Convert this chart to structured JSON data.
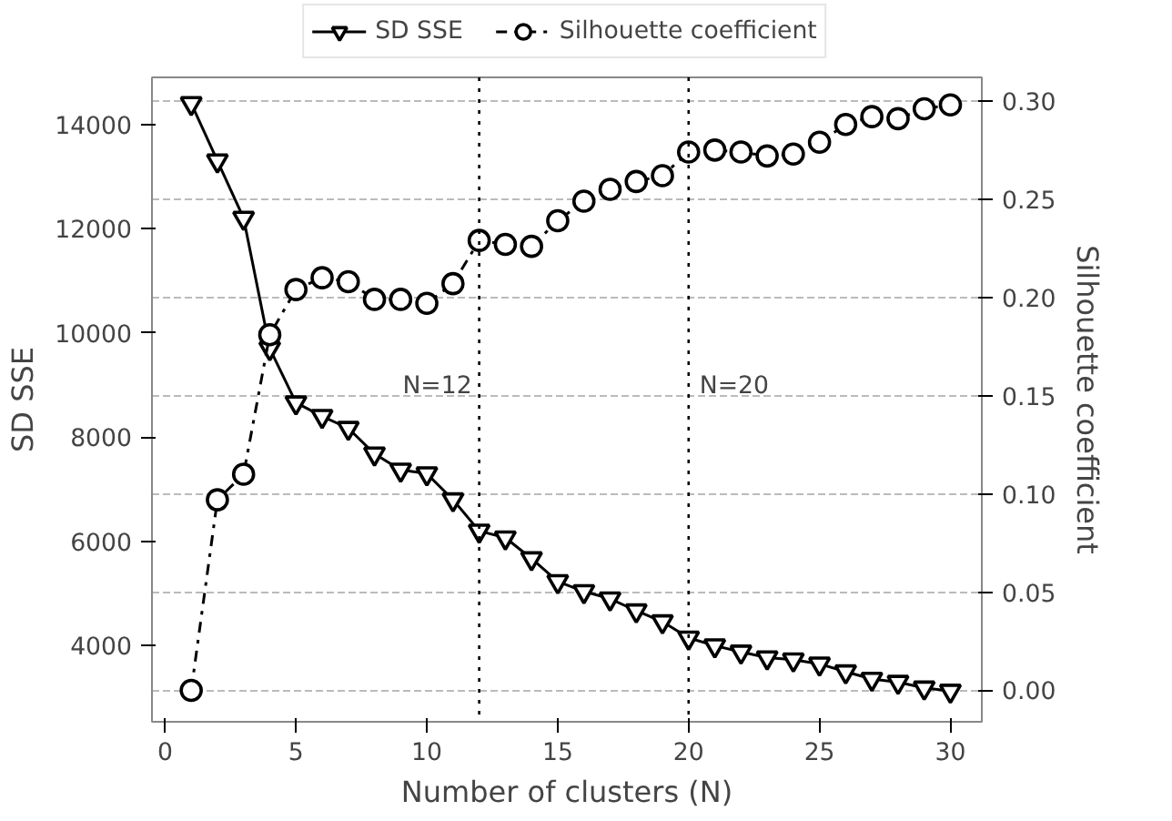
{
  "chart_data": {
    "type": "line",
    "xlabel": "Number of clusters (N)",
    "ylabel": "SD SSE",
    "y2label": "Silhouette coefficient",
    "x": [
      1,
      2,
      3,
      4,
      5,
      6,
      7,
      8,
      9,
      10,
      11,
      12,
      13,
      14,
      15,
      16,
      17,
      18,
      19,
      20,
      21,
      22,
      23,
      24,
      25,
      26,
      27,
      28,
      29,
      30
    ],
    "series": [
      {
        "name": "SD SSE",
        "color": "#000000",
        "marker": "triangle",
        "line_style": "solid",
        "values": [
          14400,
          13300,
          12200,
          9700,
          8660,
          8400,
          8170,
          7680,
          7370,
          7300,
          6800,
          6200,
          6070,
          5670,
          5230,
          5040,
          4900,
          4670,
          4460,
          4150,
          4000,
          3880,
          3770,
          3730,
          3650,
          3500,
          3360,
          3300,
          3190,
          3130
        ]
      },
      {
        "name": "Silhouette coefficient",
        "color": "#000000",
        "marker": "circle",
        "line_style": "dashdot",
        "axis": "y2",
        "values": [
          0.0,
          0.097,
          0.11,
          0.181,
          0.204,
          0.21,
          0.208,
          0.199,
          0.199,
          0.197,
          0.207,
          0.229,
          0.227,
          0.226,
          0.239,
          0.249,
          0.255,
          0.259,
          0.262,
          0.274,
          0.275,
          0.274,
          0.272,
          0.273,
          0.279,
          0.288,
          0.292,
          0.291,
          0.296,
          0.298
        ]
      }
    ],
    "xlim": [
      -0.5,
      31.2
    ],
    "xticks": [
      0,
      5,
      10,
      15,
      20,
      25,
      30
    ],
    "ylim": [
      2540,
      14900
    ],
    "yticks": [
      4000,
      6000,
      8000,
      10000,
      12000,
      14000
    ],
    "y2lim": [
      -0.016,
      0.312
    ],
    "y2ticks": [
      {
        "value": 0,
        "label": "0.00"
      },
      {
        "value": 0.05,
        "label": "0.05"
      },
      {
        "value": 0.1,
        "label": "0.10"
      },
      {
        "value": 0.15,
        "label": "0.15"
      },
      {
        "value": 0.2,
        "label": "0.20"
      },
      {
        "value": 0.25,
        "label": "0.25"
      },
      {
        "value": 0.3,
        "label": "0.30"
      }
    ],
    "ref_lines": [
      {
        "axis": "x",
        "value": 12,
        "label": "N=12",
        "line_style": "dotted",
        "color": "#000000"
      },
      {
        "axis": "x",
        "value": 20,
        "label": "N=20",
        "line_style": "dotted",
        "color": "#000000"
      }
    ],
    "grid": "y2",
    "legend": "top"
  }
}
